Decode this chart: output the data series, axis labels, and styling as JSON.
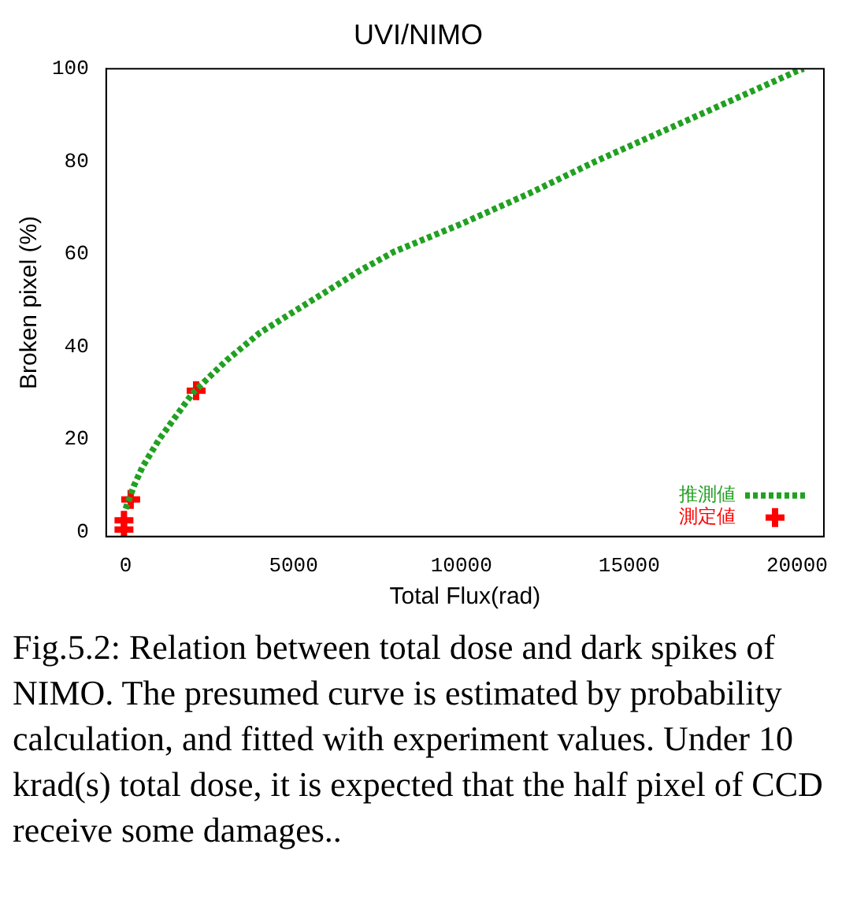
{
  "chart_data": {
    "type": "line",
    "title": "UVI/NIMO",
    "xlabel": "Total Flux(rad)",
    "ylabel": "Broken pixel (%)",
    "xlim": [
      -580,
      20800
    ],
    "ylim": [
      -1,
      100
    ],
    "xticks": [
      0,
      5000,
      10000,
      15000,
      20000
    ],
    "yticks": [
      0,
      20,
      40,
      60,
      80,
      100
    ],
    "grid": false,
    "legend": "bottom right",
    "series": [
      {
        "name": "推測値",
        "type": "line",
        "color": "#22a022",
        "line_style": "dotted",
        "marker": "none",
        "x": [
          0,
          250,
          500,
          1000,
          1500,
          2000,
          3000,
          4000,
          5000,
          6000,
          7000,
          8000,
          9000,
          10000,
          12000,
          14000,
          16000,
          18000,
          20000,
          20200
        ],
        "values": [
          5,
          10,
          14,
          20,
          25,
          30,
          37,
          43,
          47.5,
          52,
          56.5,
          60.5,
          63.5,
          66.5,
          73,
          80,
          86.5,
          93,
          99.5,
          100
        ]
      },
      {
        "name": "測定値",
        "type": "scatter",
        "color": "#ff0000",
        "marker": "cross",
        "x": [
          -50,
          -50,
          150,
          2100
        ],
        "values": [
          0.5,
          2.5,
          7,
          30.5
        ]
      }
    ],
    "annotations": [
      "Fig.5.2: Relation between total dose and dark spikes of NIMO. The presumed curve is estimated by probability calculation, and fitted with experiment values. Under 10 krad(s) total dose,  it is expected that the half pixel of CCD receive some damages.."
    ]
  }
}
